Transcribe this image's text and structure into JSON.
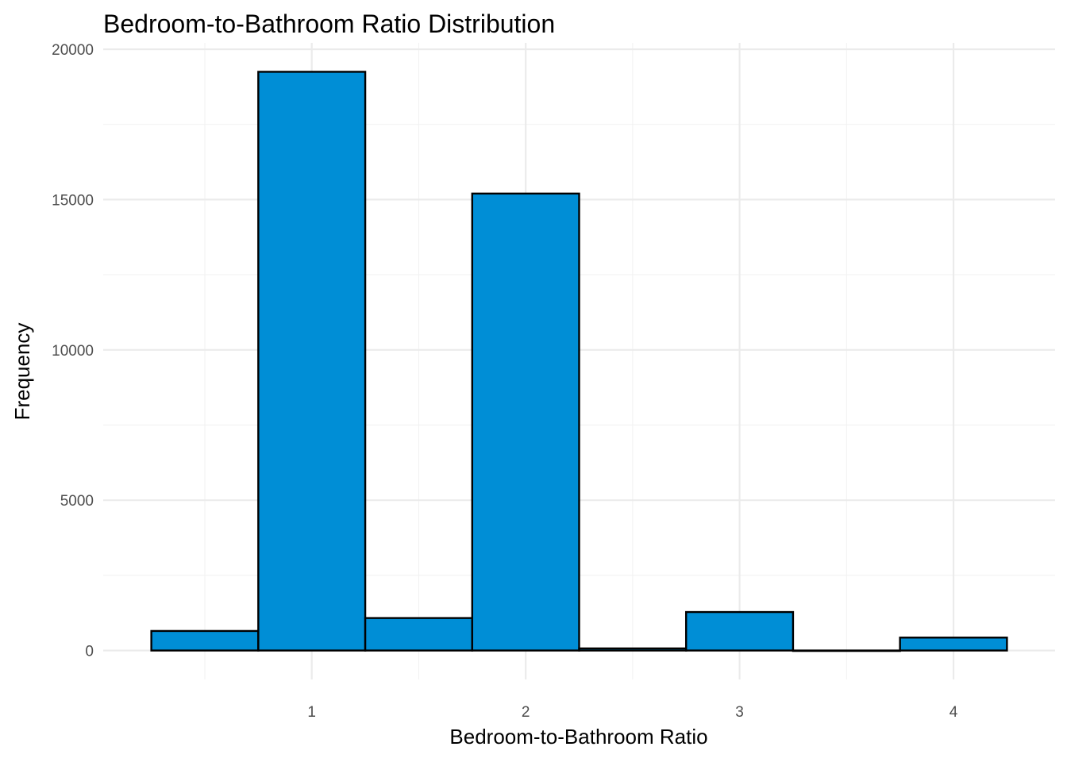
{
  "chart_data": {
    "type": "bar",
    "title": "Bedroom-to-Bathroom Ratio Distribution",
    "xlabel": "Bedroom-to-Bathroom Ratio",
    "ylabel": "Frequency",
    "bin_width": 0.5,
    "bins": [
      {
        "x_start": 0.25,
        "x_end": 0.75,
        "value": 650
      },
      {
        "x_start": 0.75,
        "x_end": 1.25,
        "value": 19250
      },
      {
        "x_start": 1.25,
        "x_end": 1.75,
        "value": 1080
      },
      {
        "x_start": 1.75,
        "x_end": 2.25,
        "value": 15200
      },
      {
        "x_start": 2.25,
        "x_end": 2.75,
        "value": 70
      },
      {
        "x_start": 2.75,
        "x_end": 3.25,
        "value": 1280
      },
      {
        "x_start": 3.25,
        "x_end": 3.75,
        "value": 0
      },
      {
        "x_start": 3.75,
        "x_end": 4.25,
        "value": 430
      }
    ],
    "x_ticks": [
      1,
      2,
      3,
      4
    ],
    "y_ticks": [
      0,
      5000,
      10000,
      15000,
      20000
    ],
    "xlim": [
      0.025,
      4.475
    ],
    "ylim": [
      -962.5,
      20212.5
    ],
    "fill_color": "#008ED6",
    "edge_color": "#000000",
    "grid": true,
    "legend": "none"
  }
}
